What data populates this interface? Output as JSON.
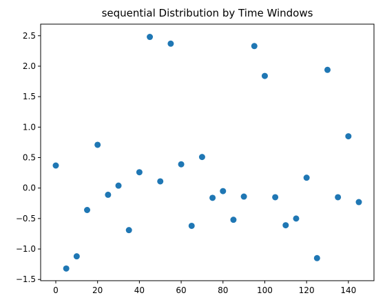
{
  "chart_data": {
    "type": "scatter",
    "title": "sequential Distribution by Time Windows",
    "xlabel": "",
    "ylabel": "",
    "xlim": [
      -7.25,
      152.25
    ],
    "ylim": [
      -1.52,
      2.69
    ],
    "grid": false,
    "legend": "none",
    "x_ticks": [
      0,
      20,
      40,
      60,
      80,
      100,
      120,
      140
    ],
    "x_tick_labels": [
      "0",
      "20",
      "40",
      "60",
      "80",
      "100",
      "120",
      "140"
    ],
    "y_ticks": [
      -1.5,
      -1.0,
      -0.5,
      0.0,
      0.5,
      1.0,
      1.5,
      2.0,
      2.5
    ],
    "y_tick_labels": [
      "−1.5",
      "−1.0",
      "−0.5",
      "0.0",
      "0.5",
      "1.0",
      "1.5",
      "2.0",
      "2.5"
    ],
    "series": [
      {
        "color": "#1f77b4",
        "x": [
          0,
          5,
          10,
          15,
          20,
          25,
          30,
          35,
          40,
          45,
          50,
          55,
          60,
          65,
          70,
          75,
          80,
          85,
          90,
          95,
          100,
          105,
          110,
          115,
          120,
          125,
          130,
          135,
          140,
          145
        ],
        "y": [
          0.37,
          -1.32,
          -1.12,
          -0.36,
          0.71,
          -0.11,
          0.04,
          -0.69,
          0.26,
          2.48,
          0.11,
          2.37,
          0.39,
          -0.62,
          0.51,
          -0.16,
          -0.05,
          -0.52,
          -0.14,
          2.33,
          1.84,
          -0.15,
          -0.61,
          -0.5,
          0.17,
          -1.15,
          1.94,
          -0.15,
          0.85,
          -0.23
        ]
      }
    ]
  }
}
